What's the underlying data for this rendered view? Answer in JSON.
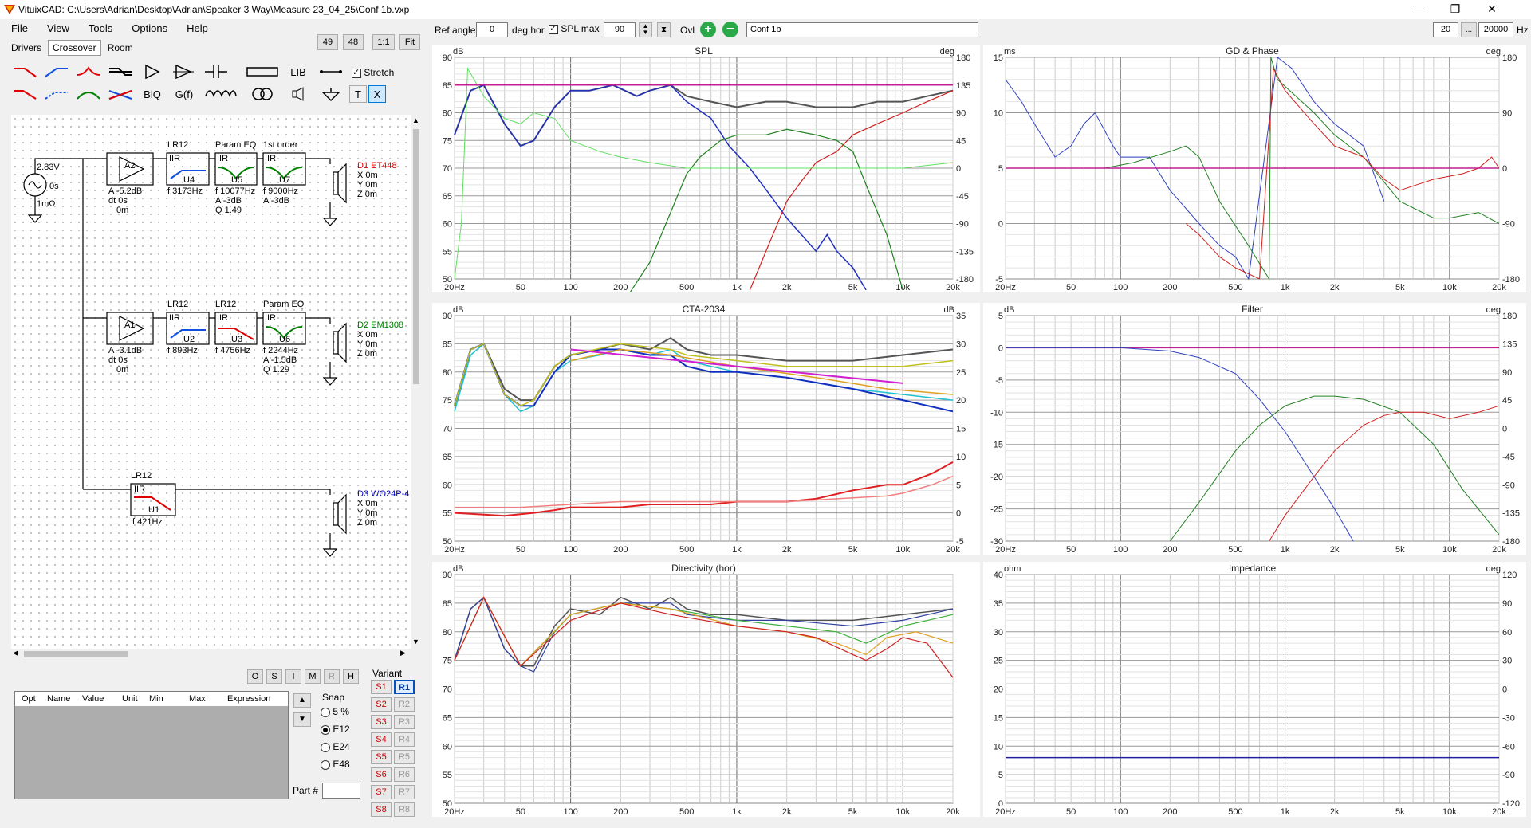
{
  "window": {
    "title": "VituixCAD: C:\\Users\\Adrian\\Desktop\\Adrian\\Speaker 3 Way\\Measure 23_04_25\\Conf 1b.vxp",
    "minimize": "—",
    "maximize": "❐",
    "close": "✕"
  },
  "menu": [
    "File",
    "View",
    "Tools",
    "Options",
    "Help"
  ],
  "tabs": [
    "Drivers",
    "Crossover",
    "Room"
  ],
  "zoom_buttons": [
    "49",
    "48",
    "1:1",
    "Fit"
  ],
  "toolbar_row1": [
    "LIB"
  ],
  "toolbar_row2": [
    "BiQ",
    "G(f)",
    "T",
    "X"
  ],
  "stretch_label": "Stretch",
  "schematic": {
    "source": {
      "voltage": "2.83V",
      "delay": "0s",
      "resistance": "1mΩ"
    },
    "ways": [
      {
        "amp": {
          "id": "A2",
          "lines": [
            "A -5.2dB",
            "dt 0s",
            "0m"
          ]
        },
        "blocks": [
          {
            "title": "LR12",
            "kind": "IIR",
            "id": "U4",
            "params": [
              "f 3173Hz"
            ]
          },
          {
            "title": "Param EQ",
            "kind": "IIR",
            "id": "U5",
            "params": [
              "f 10077Hz",
              "A -3dB",
              "Q 1.49"
            ]
          },
          {
            "title": "1st order",
            "kind": "IIR",
            "id": "U7",
            "params": [
              "f 9000Hz",
              "A -3dB"
            ]
          }
        ],
        "driver": {
          "name": "D1 ET448",
          "color": "#e00000",
          "pos": [
            "X 0m",
            "Y 0m",
            "Z 0m"
          ]
        }
      },
      {
        "amp": {
          "id": "A1",
          "lines": [
            "A -3.1dB",
            "dt 0s",
            "0m"
          ]
        },
        "blocks": [
          {
            "title": "LR12",
            "kind": "IIR",
            "id": "U2",
            "params": [
              "f 893Hz"
            ]
          },
          {
            "title": "LR12",
            "kind": "IIR",
            "id": "U3",
            "params": [
              "f 4756Hz"
            ]
          },
          {
            "title": "Param EQ",
            "kind": "IIR",
            "id": "U6",
            "params": [
              "f 2244Hz",
              "A -1.5dB",
              "Q 1.29"
            ]
          }
        ],
        "driver": {
          "name": "D2 EM1308",
          "color": "#008000",
          "pos": [
            "X 0m",
            "Y 0m",
            "Z 0m"
          ]
        }
      },
      {
        "blocks": [
          {
            "title": "LR12",
            "kind": "IIR",
            "id": "U1",
            "params": [
              "f 421Hz"
            ]
          }
        ],
        "driver": {
          "name": "D3 WO24P-4",
          "color": "#0000c0",
          "pos": [
            "X 0m",
            "Y 0m",
            "Z 0m"
          ]
        }
      }
    ]
  },
  "osi_buttons": [
    "O",
    "S",
    "I",
    "M",
    "R",
    "H"
  ],
  "opt_table": {
    "headers": [
      "Opt",
      "Name",
      "Value",
      "Unit",
      "Min",
      "Max",
      "Expression"
    ]
  },
  "snap": {
    "label": "Snap",
    "options": [
      "5 %",
      "E12",
      "E24",
      "E48"
    ],
    "selected": "E12"
  },
  "part_label": "Part #",
  "variant": {
    "label": "Variant",
    "s": [
      "S1",
      "S2",
      "S3",
      "S4",
      "S5",
      "S6",
      "S7",
      "S8"
    ],
    "r": [
      "R1",
      "R2",
      "R3",
      "R4",
      "R5",
      "R6",
      "R7",
      "R8"
    ],
    "selected": "R1"
  },
  "topbar": {
    "ref_angle_label": "Ref angle",
    "ref_angle": "0",
    "deg_hor": "deg hor",
    "spl_max_label": "SPL max",
    "spl_max": "90",
    "ovl_label": "Ovl",
    "overlay_name": "Conf 1b",
    "f_min": "20",
    "f_max": "20000",
    "hz": "Hz"
  },
  "freq_ticks": [
    "20Hz",
    "50",
    "100",
    "200",
    "500",
    "1k",
    "2k",
    "5k",
    "10k",
    "20k"
  ],
  "charts": {
    "spl": {
      "title": "SPL",
      "left_unit": "dB",
      "right_unit": "deg",
      "left_ticks": [
        "90",
        "85",
        "80",
        "75",
        "70",
        "65",
        "60",
        "55",
        "50"
      ],
      "right_ticks": [
        "180",
        "135",
        "90",
        "45",
        "0",
        "-45",
        "-90",
        "-135",
        "-180"
      ]
    },
    "gd": {
      "title": "GD & Phase",
      "left_unit": "ms",
      "right_unit": "deg",
      "left_ticks": [
        "15",
        "10",
        "5",
        "0",
        "-5"
      ],
      "right_ticks": [
        "180",
        "90",
        "0",
        "-90",
        "-180"
      ]
    },
    "cta": {
      "title": "CTA-2034",
      "left_unit": "dB",
      "right_unit": "dB",
      "left_ticks": [
        "90",
        "85",
        "80",
        "75",
        "70",
        "65",
        "60",
        "55",
        "50"
      ],
      "right_ticks": [
        "35",
        "30",
        "25",
        "20",
        "15",
        "10",
        "5",
        "0",
        "-5"
      ]
    },
    "filter": {
      "title": "Filter",
      "left_unit": "dB",
      "right_unit": "deg",
      "left_ticks": [
        "5",
        "0",
        "-5",
        "-10",
        "-15",
        "-20",
        "-25",
        "-30"
      ],
      "right_ticks": [
        "180",
        "135",
        "90",
        "45",
        "0",
        "-45",
        "-90",
        "-135",
        "-180"
      ]
    },
    "directivity": {
      "title": "Directivity (hor)",
      "left_unit": "dB",
      "left_ticks": [
        "90",
        "85",
        "80",
        "75",
        "70",
        "65",
        "60",
        "55",
        "50"
      ]
    },
    "impedance": {
      "title": "Impedance",
      "left_unit": "ohm",
      "right_unit": "deg",
      "left_ticks": [
        "40",
        "35",
        "30",
        "25",
        "20",
        "15",
        "10",
        "5",
        "0"
      ],
      "right_ticks": [
        "120",
        "90",
        "60",
        "30",
        "0",
        "-30",
        "-60",
        "-90",
        "-120"
      ]
    }
  }
}
